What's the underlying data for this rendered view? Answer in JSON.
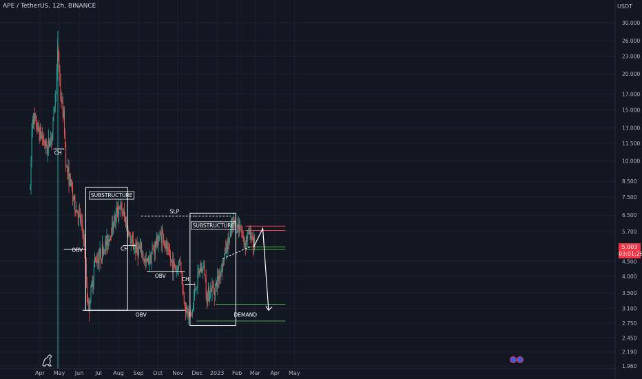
{
  "header": {
    "symbol_title": "APE / TetherUS, 12h, BINANCE",
    "currency": "USDT"
  },
  "price_badge": {
    "price": "5.003",
    "countdown": "03:01:26"
  },
  "icons": {
    "logo": "tradingview-dino-icon",
    "events": "flag-event-icon"
  },
  "colors": {
    "background": "#131722",
    "grid": "#1e2230",
    "up": "#26a69a",
    "down": "#ef5350",
    "annotation": "#ffffff",
    "resistance": "#f23645",
    "support": "#4caf50",
    "vertical_line": "#26a69a"
  },
  "chart_data": {
    "type": "candlestick",
    "scale": "log",
    "ylim": [
      1.96,
      36.0
    ],
    "x_ticks": [
      "Apr",
      "May",
      "Jun",
      "Jul",
      "Aug",
      "Sep",
      "Oct",
      "Nov",
      "Dec",
      "2023",
      "Feb",
      "Mar",
      "Apr",
      "May"
    ],
    "y_ticks": [
      "30.000",
      "26.000",
      "23.000",
      "20.000",
      "17.000",
      "15.000",
      "13.000",
      "11.500",
      "10.000",
      "8.500",
      "7.500",
      "6.500",
      "5.700",
      "5.003",
      "4.500",
      "4.000",
      "3.500",
      "3.100",
      "2.750",
      "2.450",
      "2.190",
      "1.960"
    ],
    "price_path": [
      [
        "2022-03-17",
        8.0
      ],
      [
        "2022-03-20",
        14.5
      ],
      [
        "2022-03-28",
        13.0
      ],
      [
        "2022-04-05",
        12.0
      ],
      [
        "2022-04-12",
        11.0
      ],
      [
        "2022-04-20",
        12.5
      ],
      [
        "2022-04-26",
        18.0
      ],
      [
        "2022-04-29",
        25.0
      ],
      [
        "2022-05-03",
        17.0
      ],
      [
        "2022-05-08",
        14.0
      ],
      [
        "2022-05-12",
        9.5
      ],
      [
        "2022-05-18",
        8.5
      ],
      [
        "2022-05-25",
        7.0
      ],
      [
        "2022-06-01",
        6.5
      ],
      [
        "2022-06-08",
        5.5
      ],
      [
        "2022-06-13",
        3.5
      ],
      [
        "2022-06-16",
        3.1
      ],
      [
        "2022-06-25",
        4.5
      ],
      [
        "2022-07-05",
        4.8
      ],
      [
        "2022-07-15",
        5.3
      ],
      [
        "2022-07-25",
        6.2
      ],
      [
        "2022-08-02",
        7.0
      ],
      [
        "2022-08-08",
        6.6
      ],
      [
        "2022-08-14",
        6.0
      ],
      [
        "2022-08-20",
        5.2
      ],
      [
        "2022-08-28",
        5.0
      ],
      [
        "2022-09-05",
        4.9
      ],
      [
        "2022-09-12",
        4.4
      ],
      [
        "2022-09-20",
        4.7
      ],
      [
        "2022-09-30",
        5.3
      ],
      [
        "2022-10-08",
        5.6
      ],
      [
        "2022-10-15",
        4.9
      ],
      [
        "2022-10-22",
        4.5
      ],
      [
        "2022-10-30",
        4.2
      ],
      [
        "2022-11-05",
        4.6
      ],
      [
        "2022-11-09",
        3.5
      ],
      [
        "2022-11-15",
        3.0
      ],
      [
        "2022-11-22",
        2.9
      ],
      [
        "2022-11-28",
        3.6
      ],
      [
        "2022-12-05",
        4.2
      ],
      [
        "2022-12-12",
        4.3
      ],
      [
        "2022-12-16",
        3.4
      ],
      [
        "2022-12-22",
        3.6
      ],
      [
        "2022-12-30",
        3.7
      ],
      [
        "2023-01-08",
        4.3
      ],
      [
        "2023-01-14",
        4.9
      ],
      [
        "2023-01-20",
        5.4
      ],
      [
        "2023-01-26",
        6.1
      ],
      [
        "2023-02-01",
        5.9
      ],
      [
        "2023-02-06",
        6.0
      ],
      [
        "2023-02-12",
        5.2
      ],
      [
        "2023-02-18",
        5.6
      ],
      [
        "2023-02-23",
        5.6
      ],
      [
        "2023-03-01",
        5.0
      ]
    ],
    "annotations": [
      {
        "type": "label",
        "text": "CH",
        "at": [
          "2022-04-29",
          10.5
        ]
      },
      {
        "type": "label",
        "text": "OBV",
        "at": [
          "2022-05-29",
          4.85
        ]
      },
      {
        "type": "label",
        "text": "CH",
        "at": [
          "2022-08-10",
          4.9
        ]
      },
      {
        "type": "label",
        "text": "OBV",
        "at": [
          "2022-10-05",
          3.95
        ]
      },
      {
        "type": "label",
        "text": "OBV",
        "at": [
          "2022-09-05",
          2.9
        ]
      },
      {
        "type": "label",
        "text": "CH",
        "at": [
          "2022-11-13",
          3.85
        ]
      },
      {
        "type": "label",
        "text": "SLP",
        "at": [
          "2022-10-27",
          6.6
        ]
      },
      {
        "type": "label",
        "text": "DEMAND",
        "at": [
          "2023-02-14",
          2.9
        ]
      },
      {
        "type": "boxed-label",
        "text": "SUBSTRUCTURE",
        "at": [
          "2022-06-19",
          7.5
        ]
      },
      {
        "type": "boxed-label",
        "text": "SUBSTRUCTURE",
        "at": [
          "2022-11-24",
          5.9
        ]
      }
    ]
  }
}
